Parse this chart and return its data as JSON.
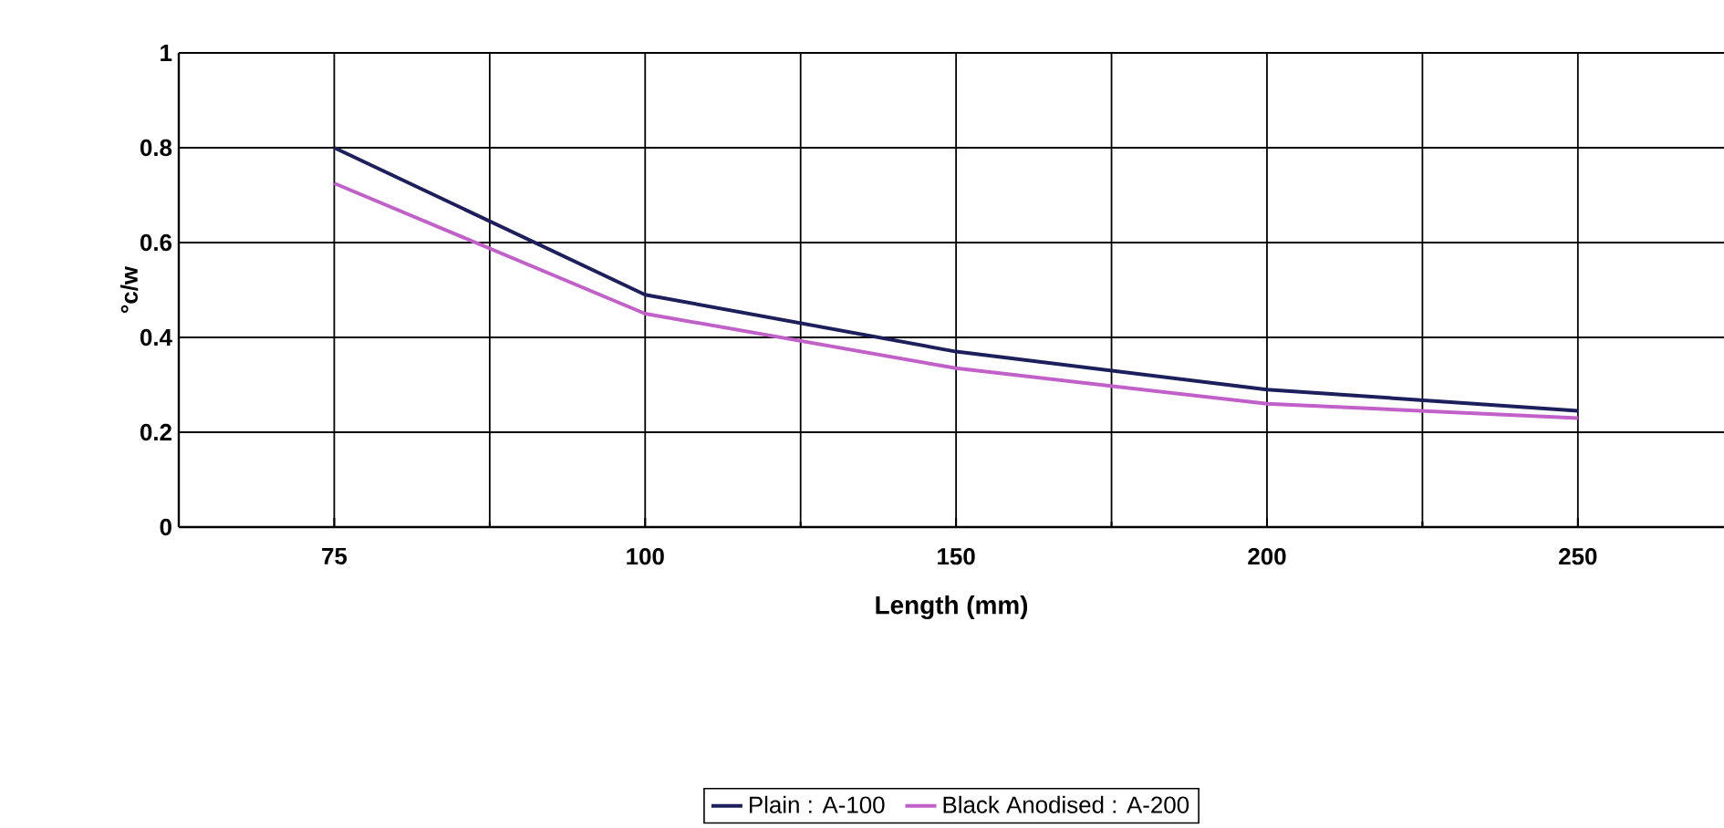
{
  "chart_data": {
    "type": "line",
    "xlabel": "Length (mm)",
    "ylabel": "°c/w",
    "categories": [
      "75",
      "100",
      "150",
      "200",
      "250"
    ],
    "series": [
      {
        "name": "Plain : A-100",
        "color": "#1c1f5c",
        "values": [
          0.8,
          0.49,
          0.37,
          0.29,
          0.245
        ]
      },
      {
        "name": "Black Anodised : A-200",
        "color": "#c060c8",
        "values": [
          0.725,
          0.45,
          0.335,
          0.26,
          0.23
        ]
      }
    ],
    "ylim": [
      0,
      1
    ],
    "yticks": [
      0,
      0.2,
      0.4,
      0.6,
      0.8,
      1
    ],
    "grid": true,
    "legend": "bottom",
    "marker": "none",
    "line_style": "solid"
  }
}
